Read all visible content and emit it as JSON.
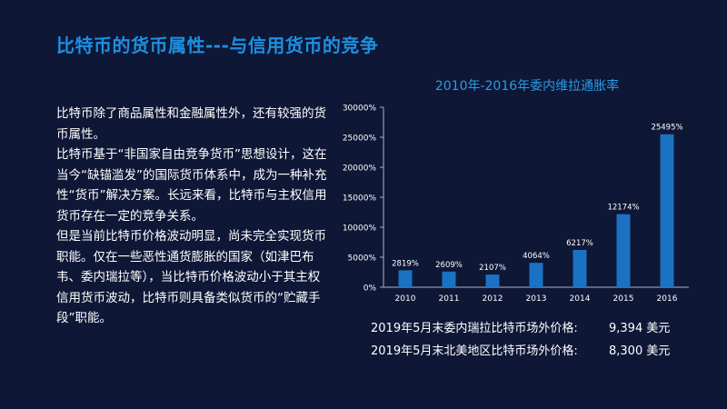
{
  "slide": {
    "title": "比特币的货币属性---与信用货币的竞争"
  },
  "body": {
    "paragraphs": [
      "比特币除了商品属性和金融属性外，还有较强的货币属性。",
      "比特币基于“非国家自由竞争货币”思想设计，这在当今“缺锚滥发”的国际货币体系中，成为一种补充性“货币”解决方案。长远来看，比特币与主权信用货币存在一定的竞争关系。",
      "但是当前比特币价格波动明显，尚未完全实现货币职能。仅在一些恶性通货膨胀的国家（如津巴布韦、委内瑞拉等），当比特币价格波动小于其主权信用货币波动，比特币则具备类似货币的“贮藏手段”职能。"
    ]
  },
  "colors": {
    "background": "#0e1736",
    "title": "#1e8fe0",
    "bar": "#1b72c2",
    "axis": "#aab4c8"
  },
  "chart_data": {
    "type": "bar",
    "title": "2010年-2016年委内维拉通胀率",
    "categories": [
      "2010",
      "2011",
      "2012",
      "2013",
      "2014",
      "2015",
      "2016"
    ],
    "values": [
      2819,
      2609,
      2107,
      4064,
      6217,
      12174,
      25495
    ],
    "value_labels": [
      "2819%",
      "2609%",
      "2107%",
      "4064%",
      "6217%",
      "12174%",
      "25495%"
    ],
    "y_ticks": [
      0,
      5000,
      10000,
      15000,
      20000,
      25000,
      30000
    ],
    "y_tick_labels": [
      "0%",
      "5000%",
      "10000%",
      "15000%",
      "20000%",
      "25000%",
      "30000%"
    ],
    "ylim": [
      0,
      30000
    ],
    "xlabel": "",
    "ylabel": "",
    "grid": false
  },
  "notes": [
    {
      "label": "2019年5月末委内瑞拉比特币场外价格:",
      "value": "9,394 美元"
    },
    {
      "label": "2019年5月末北美地区比特币场外价格:",
      "value": "8,300 美元"
    }
  ]
}
